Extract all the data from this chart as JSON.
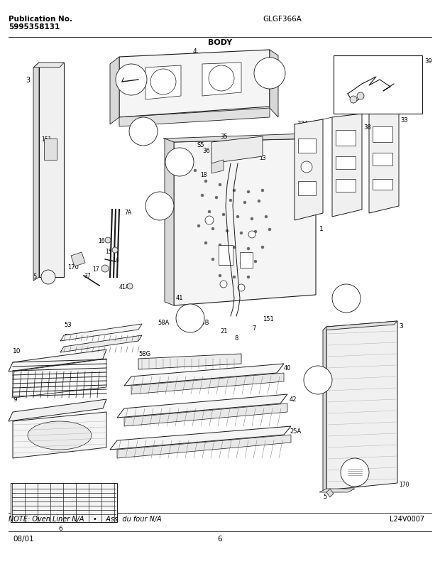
{
  "title_left_line1": "Publication No.",
  "title_left_line2": "5995358131",
  "title_center": "GLGF366A",
  "title_body": "BODY",
  "note_text": "NOTE: Oven Liner N/A    •    Ass. du four N/A",
  "part_number": "L24V0007",
  "date": "08/01",
  "page": "6",
  "bg_color": "#ffffff",
  "border_color": "#000000",
  "text_color": "#000000",
  "fig_width": 6.2,
  "fig_height": 7.94,
  "dpi": 100
}
